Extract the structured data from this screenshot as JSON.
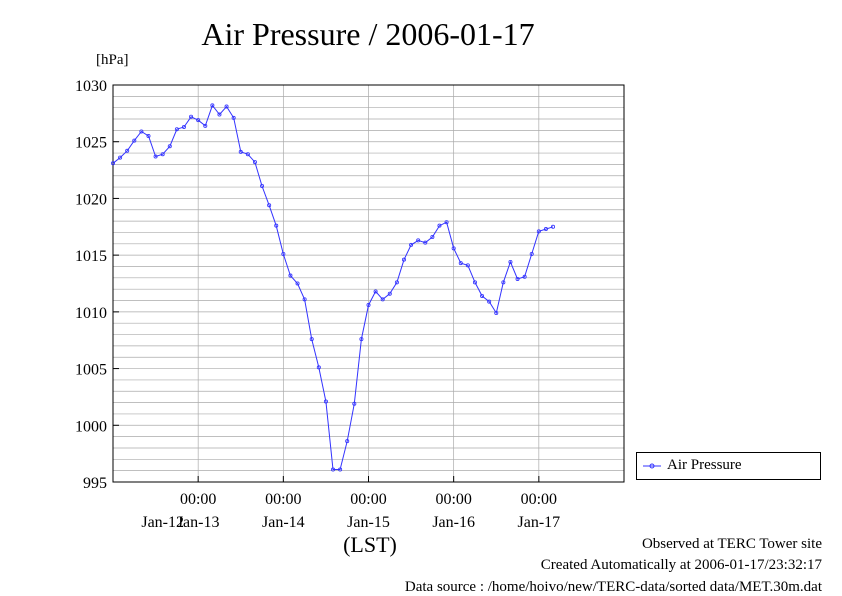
{
  "chart_data": {
    "type": "line",
    "title": "Air Pressure / 2006-01-17",
    "ylabel": "[hPa]",
    "xlabel": "(LST)",
    "ylim": [
      995,
      1030
    ],
    "yticks": [
      995,
      1000,
      1005,
      1010,
      1015,
      1020,
      1025,
      1030
    ],
    "xlim_hours": [
      -24,
      120
    ],
    "xticks": [
      {
        "hour": 0,
        "time": "00:00",
        "date": "Jan-13"
      },
      {
        "hour": 24,
        "time": "00:00",
        "date": "Jan-14"
      },
      {
        "hour": 48,
        "time": "00:00",
        "date": "Jan-15"
      },
      {
        "hour": 72,
        "time": "00:00",
        "date": "Jan-16"
      },
      {
        "hour": 96,
        "time": "00:00",
        "date": "Jan-17"
      }
    ],
    "first_date_label": "Jan-12",
    "legend_position": "bottom-right, outside plot",
    "grid": true,
    "series": [
      {
        "name": "Air Pressure",
        "color": "#3333ff",
        "points": [
          [
            -24,
            1023.1
          ],
          [
            -22,
            1023.6
          ],
          [
            -20,
            1024.2
          ],
          [
            -18,
            1025.1
          ],
          [
            -16,
            1025.9
          ],
          [
            -14,
            1025.5
          ],
          [
            -12,
            1023.7
          ],
          [
            -10,
            1023.9
          ],
          [
            -8,
            1024.6
          ],
          [
            -6,
            1026.1
          ],
          [
            -4,
            1026.3
          ],
          [
            -2,
            1027.2
          ],
          [
            0,
            1026.9
          ],
          [
            2,
            1026.4
          ],
          [
            4,
            1028.2
          ],
          [
            6,
            1027.4
          ],
          [
            8,
            1028.1
          ],
          [
            10,
            1027.1
          ],
          [
            12,
            1024.1
          ],
          [
            14,
            1023.9
          ],
          [
            16,
            1023.2
          ],
          [
            18,
            1021.1
          ],
          [
            20,
            1019.4
          ],
          [
            22,
            1017.6
          ],
          [
            24,
            1015.1
          ],
          [
            26,
            1013.2
          ],
          [
            28,
            1012.5
          ],
          [
            30,
            1011.1
          ],
          [
            32,
            1007.6
          ],
          [
            34,
            1005.1
          ],
          [
            36,
            1002.1
          ],
          [
            38,
            996.1
          ],
          [
            40,
            996.1
          ],
          [
            42,
            998.6
          ],
          [
            44,
            1001.9
          ],
          [
            46,
            1007.6
          ],
          [
            48,
            1010.6
          ],
          [
            50,
            1011.8
          ],
          [
            52,
            1011.1
          ],
          [
            54,
            1011.6
          ],
          [
            56,
            1012.6
          ],
          [
            58,
            1014.6
          ],
          [
            60,
            1015.9
          ],
          [
            62,
            1016.3
          ],
          [
            64,
            1016.1
          ],
          [
            66,
            1016.6
          ],
          [
            68,
            1017.6
          ],
          [
            70,
            1017.9
          ],
          [
            72,
            1015.6
          ],
          [
            74,
            1014.3
          ],
          [
            76,
            1014.1
          ],
          [
            78,
            1012.6
          ],
          [
            80,
            1011.4
          ],
          [
            82,
            1010.9
          ],
          [
            84,
            1009.9
          ],
          [
            86,
            1012.6
          ],
          [
            88,
            1014.4
          ],
          [
            90,
            1012.9
          ],
          [
            92,
            1013.1
          ],
          [
            94,
            1015.1
          ],
          [
            96,
            1017.1
          ],
          [
            98,
            1017.3
          ],
          [
            100,
            1017.5
          ]
        ]
      }
    ]
  },
  "legend": {
    "label": "Air Pressure"
  },
  "footer": {
    "line1": "Observed at TERC Tower site",
    "line2": "Created Automatically at 2006-01-17/23:32:17",
    "line3": "Data source : /home/hoivo/new/TERC-data/sorted  data/MET.30m.dat"
  }
}
